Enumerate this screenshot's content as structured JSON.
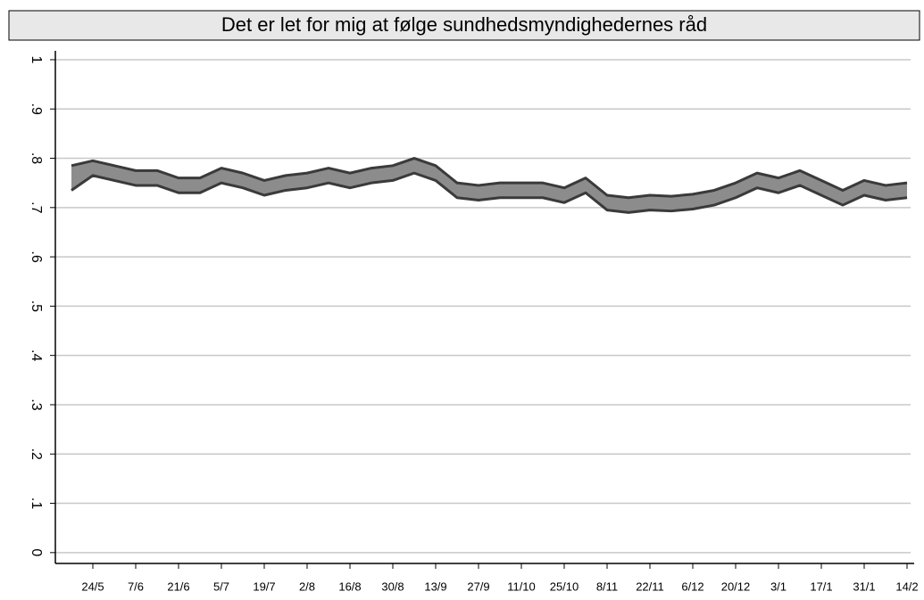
{
  "chart_data": {
    "type": "band",
    "title": "Det er let for mig at følge sundhedsmyndighedernes råd",
    "categories": [
      null,
      "24/5",
      null,
      "7/6",
      null,
      "21/6",
      null,
      "5/7",
      null,
      "19/7",
      null,
      "2/8",
      null,
      "16/8",
      null,
      "30/8",
      null,
      "13/9",
      null,
      "27/9",
      null,
      "11/10",
      null,
      "25/10",
      null,
      "8/11",
      null,
      "22/11",
      null,
      "6/12",
      null,
      "20/12",
      null,
      "3/1",
      null,
      "17/1",
      null,
      "31/1",
      null,
      "14/2"
    ],
    "series": [
      {
        "color": "#3a3a3a",
        "values": [
          0.735,
          0.765,
          0.755,
          0.745,
          0.745,
          0.73,
          0.73,
          0.75,
          0.74,
          0.725,
          0.735,
          0.74,
          0.75,
          0.74,
          0.75,
          0.755,
          0.77,
          0.755,
          0.72,
          0.715,
          0.72,
          0.72,
          0.72,
          0.71,
          0.73,
          0.695,
          0.69,
          0.695,
          0.693,
          0.697,
          0.705,
          0.72,
          0.74,
          0.73,
          0.745,
          0.725,
          0.705,
          0.725,
          0.715,
          0.72
        ]
      },
      {
        "color": "#3a3a3a",
        "values": [
          0.785,
          0.795,
          0.785,
          0.775,
          0.775,
          0.76,
          0.76,
          0.78,
          0.77,
          0.755,
          0.765,
          0.77,
          0.78,
          0.77,
          0.78,
          0.785,
          0.8,
          0.785,
          0.75,
          0.745,
          0.75,
          0.75,
          0.75,
          0.74,
          0.76,
          0.725,
          0.72,
          0.725,
          0.723,
          0.727,
          0.735,
          0.75,
          0.77,
          0.76,
          0.775,
          0.755,
          0.735,
          0.755,
          0.745,
          0.75
        ]
      }
    ],
    "fill": "#8c8c8c",
    "ylim": [
      -0.022,
      1.018
    ],
    "yticks": [
      0,
      {
        "value": 0.1,
        "label": ".1"
      },
      {
        "value": 0.2,
        "label": ".2"
      },
      {
        "value": 0.3,
        "label": ".3"
      },
      {
        "value": 0.4,
        "label": ".4"
      },
      {
        "value": 0.5,
        "label": ".5"
      },
      {
        "value": 0.6,
        "label": ".6"
      },
      {
        "value": 0.7,
        "label": ".7"
      },
      {
        "value": 0.8,
        "label": ".8"
      },
      {
        "value": 0.9,
        "label": ".9"
      },
      1
    ],
    "grid": true
  }
}
